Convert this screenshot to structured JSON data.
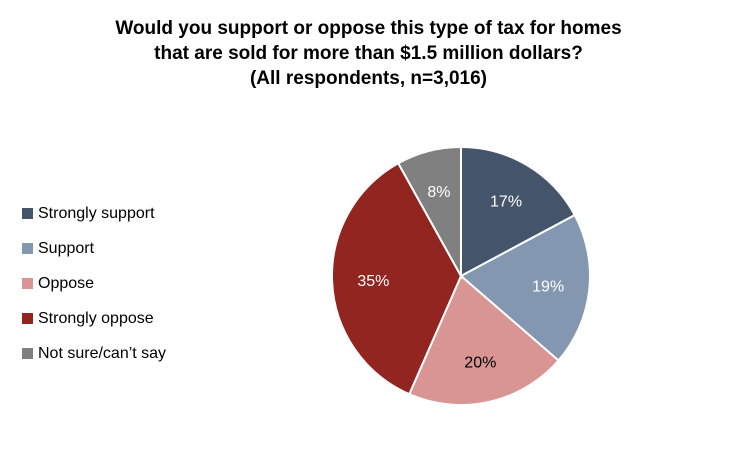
{
  "chart_data": {
    "type": "pie",
    "title": [
      "Would you support or oppose this type of tax for homes",
      "that are sold for more than $1.5 million dollars?",
      "(All respondents, n=3,016)"
    ],
    "categories": [
      "Strongly support",
      "Support",
      "Oppose",
      "Strongly oppose",
      "Not sure/can’t say"
    ],
    "values": [
      17,
      19,
      20,
      35,
      8
    ],
    "labels": [
      "17%",
      "19%",
      "20%",
      "35%",
      "8%"
    ],
    "colors": [
      "#44546a",
      "#8497b0",
      "#d99594",
      "#92251f",
      "#808080"
    ],
    "label_colors": [
      "#ffffff",
      "#ffffff",
      "#000000",
      "#ffffff",
      "#ffffff"
    ],
    "legend_position": "left"
  }
}
